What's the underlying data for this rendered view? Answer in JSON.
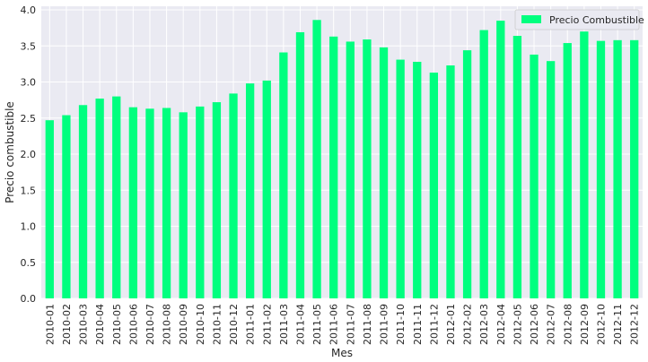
{
  "chart_data": {
    "type": "bar",
    "xlabel": "Mes",
    "ylabel": "Precio combustible",
    "ylim": [
      0,
      4.05
    ],
    "yticks": [
      "0.0",
      "0.5",
      "1.0",
      "1.5",
      "2.0",
      "2.5",
      "3.0",
      "3.5",
      "4.0"
    ],
    "grid": true,
    "legend_position": "top-right",
    "categories": [
      "2010-01",
      "2010-02",
      "2010-03",
      "2010-04",
      "2010-05",
      "2010-06",
      "2010-07",
      "2010-08",
      "2010-09",
      "2010-10",
      "2010-11",
      "2010-12",
      "2011-01",
      "2011-02",
      "2011-03",
      "2011-04",
      "2011-05",
      "2011-06",
      "2011-07",
      "2011-08",
      "2011-09",
      "2011-10",
      "2011-11",
      "2011-12",
      "2012-01",
      "2012-02",
      "2012-03",
      "2012-04",
      "2012-05",
      "2012-06",
      "2012-07",
      "2012-08",
      "2012-09",
      "2012-10",
      "2012-11",
      "2012-12"
    ],
    "series": [
      {
        "name": "Precio Combustible",
        "color": "#00ff7f",
        "values": [
          2.47,
          2.54,
          2.68,
          2.77,
          2.8,
          2.65,
          2.63,
          2.64,
          2.58,
          2.66,
          2.72,
          2.84,
          2.98,
          3.02,
          3.41,
          3.69,
          3.86,
          3.63,
          3.56,
          3.59,
          3.48,
          3.31,
          3.28,
          3.13,
          3.23,
          3.44,
          3.72,
          3.85,
          3.64,
          3.38,
          3.29,
          3.54,
          3.7,
          3.57,
          3.58,
          3.58
        ]
      }
    ]
  }
}
